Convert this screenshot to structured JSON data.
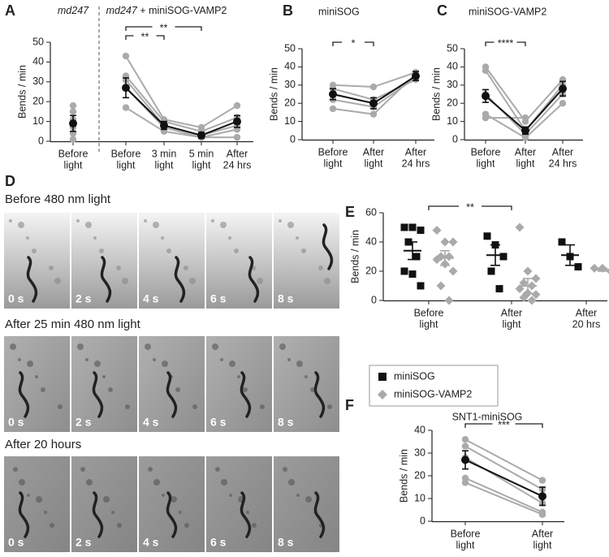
{
  "chart_data": [
    {
      "type": "line",
      "panel": "A",
      "group_labels": [
        [
          "md247"
        ],
        [
          "md247",
          " + miniSOG-VAMP2"
        ]
      ],
      "ylabel": "Bends / min",
      "categories": [
        [
          "Before",
          "light"
        ],
        [
          "Before",
          "light"
        ],
        [
          "3 min",
          "light"
        ],
        [
          "5 min",
          "light"
        ],
        [
          "After",
          "24 hrs"
        ]
      ],
      "ylim": [
        0,
        50
      ],
      "yticks": [
        0,
        10,
        20,
        30,
        40,
        50
      ],
      "animal_color": "#aaaaaa",
      "mean_color": "#111111",
      "animals": [
        [
          18,
          null,
          null,
          null,
          null
        ],
        [
          15,
          null,
          null,
          null,
          null
        ],
        [
          11,
          null,
          null,
          null,
          null
        ],
        [
          7,
          null,
          null,
          null,
          null
        ],
        [
          4,
          null,
          null,
          null,
          null
        ],
        [
          1,
          null,
          null,
          null,
          null
        ],
        [
          null,
          43,
          11,
          7,
          18
        ],
        [
          null,
          33,
          10,
          5,
          12
        ],
        [
          null,
          31,
          8,
          3,
          8
        ],
        [
          null,
          27,
          7,
          2,
          6
        ],
        [
          null,
          17,
          5,
          2,
          2
        ]
      ],
      "means": [
        {
          "values": [
            9,
            null,
            null,
            null,
            null
          ],
          "error": [
            4,
            null,
            null,
            null,
            null
          ]
        },
        {
          "values": [
            null,
            27,
            8,
            3,
            10
          ],
          "error": [
            null,
            5,
            2,
            1.5,
            3
          ]
        }
      ],
      "significance": [
        {
          "label": "**",
          "between": [
            1,
            2
          ]
        },
        {
          "label": "**",
          "between": [
            1,
            3
          ]
        }
      ]
    },
    {
      "type": "line",
      "panel": "B",
      "title": "miniSOG",
      "ylabel": "Bends / min",
      "categories": [
        [
          "Before",
          "light"
        ],
        [
          "After",
          "light"
        ],
        [
          "After",
          "24 hrs"
        ]
      ],
      "ylim": [
        0,
        50
      ],
      "yticks": [
        0,
        10,
        20,
        30,
        40,
        50
      ],
      "animal_color": "#aaaaaa",
      "mean_color": "#111111",
      "animals": [
        [
          30,
          29,
          37
        ],
        [
          28,
          22,
          33
        ],
        [
          25,
          20,
          35
        ],
        [
          22,
          18,
          34
        ],
        [
          17,
          14,
          36
        ]
      ],
      "means": [
        {
          "values": [
            25,
            20,
            35
          ],
          "error": [
            3,
            3,
            2.5
          ]
        }
      ],
      "significance": [
        {
          "label": "*",
          "between": [
            0,
            1
          ]
        }
      ]
    },
    {
      "type": "line",
      "panel": "C",
      "title": "miniSOG-VAMP2",
      "ylabel": "Bends / min",
      "categories": [
        [
          "Before",
          "light"
        ],
        [
          "After",
          "light"
        ],
        [
          "After",
          "24 hrs"
        ]
      ],
      "ylim": [
        0,
        50
      ],
      "yticks": [
        0,
        10,
        20,
        30,
        40,
        50
      ],
      "animal_color": "#aaaaaa",
      "mean_color": "#111111",
      "animals": [
        [
          40,
          10,
          33
        ],
        [
          38,
          5,
          30
        ],
        [
          25,
          3,
          25
        ],
        [
          14,
          1,
          20
        ],
        [
          12,
          12,
          null
        ]
      ],
      "means": [
        {
          "values": [
            24,
            5,
            28
          ],
          "error": [
            3.5,
            2,
            4
          ]
        }
      ],
      "significance": [
        {
          "label": "****",
          "between": [
            0,
            1
          ]
        }
      ]
    },
    {
      "type": "strip",
      "panel": "E",
      "ylabel": "Bends / min",
      "categories": [
        [
          "Before",
          "light"
        ],
        [
          "After",
          "light"
        ],
        [
          "After",
          "20 hrs"
        ]
      ],
      "ylim": [
        0,
        60
      ],
      "yticks": [
        0,
        20,
        40,
        60
      ],
      "series": [
        {
          "name": "miniSOG",
          "color": "#111111",
          "marker": "square",
          "values": [
            [
              50,
              50,
              48,
              40,
              30,
              20,
              18,
              10
            ],
            [
              44,
              38,
              30,
              20,
              8
            ],
            [
              40,
              30,
              23
            ]
          ],
          "mean": [
            34,
            31,
            31
          ],
          "error": [
            6,
            7,
            7
          ]
        },
        {
          "name": "miniSOG-VAMP2",
          "color": "#aaaaaa",
          "marker": "diamond",
          "values": [
            [
              48,
              40,
              40,
              30,
              30,
              28,
              25,
              20,
              10,
              0
            ],
            [
              50,
              20,
              15,
              12,
              10,
              8,
              5,
              4,
              2,
              0
            ],
            [
              22,
              22,
              20
            ]
          ],
          "mean": [
            29,
            10,
            21
          ],
          "error": [
            5,
            5,
            1
          ]
        }
      ],
      "significance": [
        {
          "label": "**",
          "between": [
            0,
            1
          ]
        }
      ]
    },
    {
      "type": "line",
      "panel": "F",
      "title": "SNT1-miniSOG",
      "ylabel": "Bends / min",
      "categories": [
        [
          "Before",
          "light"
        ],
        [
          "After",
          "light"
        ]
      ],
      "ylim": [
        0,
        40
      ],
      "yticks": [
        0,
        10,
        20,
        30,
        40
      ],
      "animal_color": "#aaaaaa",
      "mean_color": "#111111",
      "animals": [
        [
          36,
          18
        ],
        [
          33,
          14
        ],
        [
          28,
          8
        ],
        [
          19,
          4
        ],
        [
          17,
          3
        ]
      ],
      "means": [
        {
          "values": [
            27,
            11
          ],
          "error": [
            4,
            4
          ]
        }
      ],
      "significance": [
        {
          "label": "***",
          "between": [
            0,
            1
          ]
        }
      ]
    }
  ],
  "image_panel": {
    "panel": "D",
    "rows": [
      {
        "title": "Before 480 nm light",
        "frames": [
          "0 s",
          "2 s",
          "4 s",
          "6 s",
          "8 s"
        ]
      },
      {
        "title": "After 25 min 480 nm light",
        "frames": [
          "0 s",
          "2 s",
          "4 s",
          "6 s",
          "8 s"
        ]
      },
      {
        "title": "After 20 hours",
        "frames": [
          "0 s",
          "2 s",
          "4 s",
          "6 s",
          "8 s"
        ]
      }
    ]
  }
}
